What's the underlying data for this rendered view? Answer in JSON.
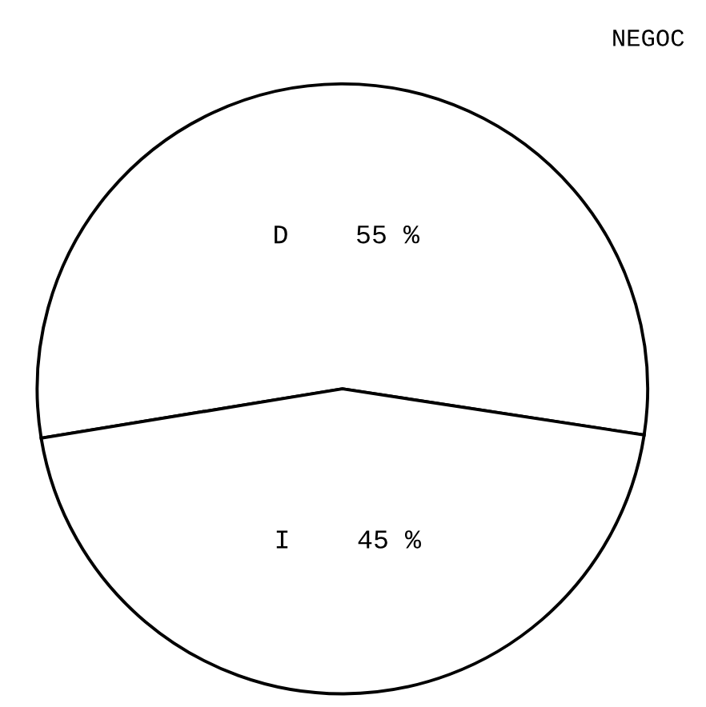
{
  "chart_data": {
    "type": "pie",
    "title": "NEGOC",
    "categories": [
      "D",
      "I"
    ],
    "values": [
      55,
      45
    ],
    "colors": [
      "#ffffff",
      "#ffffff"
    ],
    "value_labels": [
      "55 %",
      "45 %"
    ]
  }
}
